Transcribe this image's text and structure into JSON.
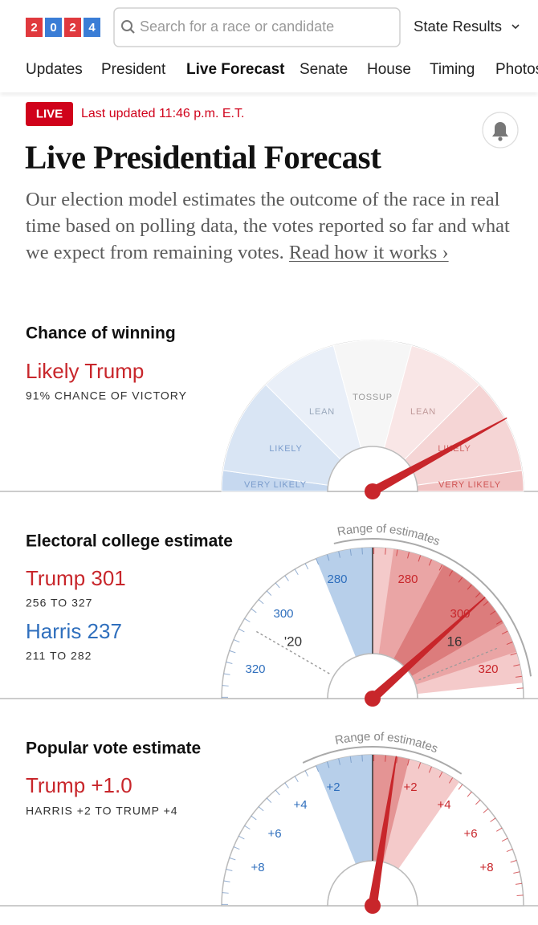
{
  "header": {
    "logo": [
      "2",
      "0",
      "2",
      "4"
    ],
    "search_placeholder": "Search for a race or candidate",
    "state_results": "State Results"
  },
  "nav": [
    "Updates",
    "President",
    "Live Forecast",
    "Senate",
    "House",
    "Timing",
    "Photos"
  ],
  "status": {
    "badge": "LIVE",
    "updated": "Last updated 11:46 p.m. E.T."
  },
  "title": "Live Presidential Forecast",
  "description": {
    "text": "Our election model estimates the outcome of the race in real time based on polling data, the votes reported so far and what we expect from remaining votes.",
    "link": "Read how it works ›"
  },
  "chance": {
    "heading": "Chance of winning",
    "leader": "Likely Trump",
    "detail": "91% CHANCE OF VICTORY",
    "zones": [
      "VERY LIKELY",
      "LIKELY",
      "LEAN",
      "TOSSUP",
      "LEAN",
      "LIKELY",
      "VERY LIKELY"
    ]
  },
  "electoral": {
    "heading": "Electoral college estimate",
    "candidates": [
      {
        "name": "Trump 301",
        "range": "256 TO 327"
      },
      {
        "name": "Harris 237",
        "range": "211 TO 282"
      }
    ],
    "ticks_left": [
      "280",
      "300",
      "320"
    ],
    "ticks_right": [
      "280",
      "300",
      "320"
    ],
    "markers": [
      "'20",
      "16"
    ],
    "range_label": "Range of estimates"
  },
  "popular": {
    "heading": "Popular vote estimate",
    "leader": "Trump +1.0",
    "range": "HARRIS +2 TO TRUMP +4",
    "ticks_left": [
      "+2",
      "+4",
      "+6",
      "+8"
    ],
    "ticks_right": [
      "+2",
      "+4",
      "+6",
      "+8"
    ],
    "range_label": "Range of estimates"
  }
}
